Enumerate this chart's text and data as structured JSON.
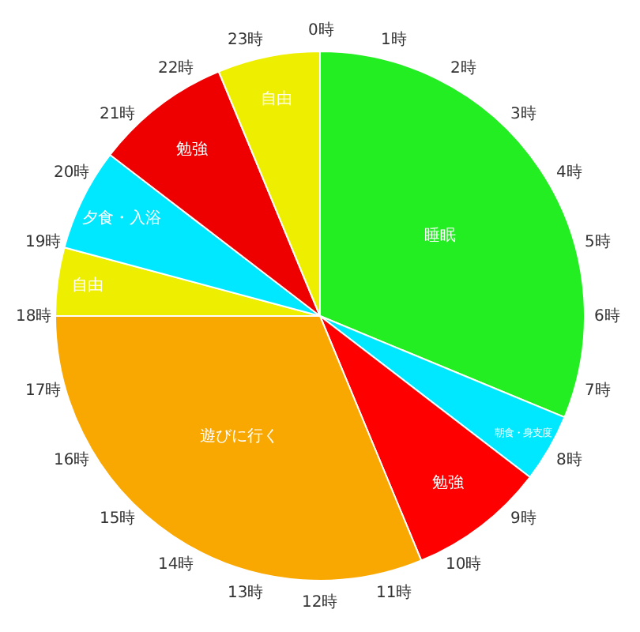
{
  "chart_data": {
    "type": "pie",
    "categories": [
      "睡眠",
      "朝食・身支度",
      "勉強",
      "遊びに行く",
      "自由",
      "夕食・入浴",
      "勉強",
      "自由"
    ],
    "values": [
      31.25,
      4.17,
      8.33,
      31.25,
      4.17,
      6.25,
      8.33,
      6.25
    ],
    "colors": [
      "#22ee22",
      "#00e8ff",
      "#ff0000",
      "#f8a800",
      "#eeee00",
      "#00e8ff",
      "#ee0000",
      "#eeee00"
    ],
    "annotations": [
      "0時",
      "1時",
      "2時",
      "3時",
      "4時",
      "5時",
      "6時",
      "7時",
      "8時",
      "9時",
      "10時",
      "11時",
      "12時",
      "13時",
      "14時",
      "15時",
      "16時",
      "17時",
      "18時",
      "19時",
      "20時",
      "21時",
      "22時",
      "23時"
    ],
    "legend": false
  }
}
